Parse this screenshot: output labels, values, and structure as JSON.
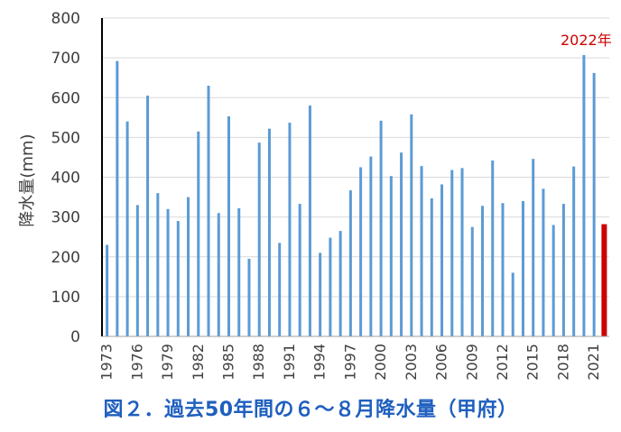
{
  "caption": "図２．過去50年間の６～８月降水量（甲府）",
  "chart_data": {
    "type": "bar",
    "ylabel": "降水量(mm)",
    "ylim": [
      0,
      800
    ],
    "yticks": [
      "0",
      "100",
      "200",
      "300",
      "400",
      "500",
      "600",
      "700",
      "800"
    ],
    "xtick_labels": [
      "1973",
      "1976",
      "1979",
      "1982",
      "1985",
      "1988",
      "1991",
      "1994",
      "1997",
      "2000",
      "2003",
      "2006",
      "2009",
      "2012",
      "2015",
      "2018",
      "2021"
    ],
    "bar_color": "#5b9bd5",
    "highlight_color": "#cc0000",
    "highlight_label": "2022年",
    "highlight_category": "2022",
    "categories": [
      "1973",
      "1974",
      "1975",
      "1976",
      "1977",
      "1978",
      "1979",
      "1980",
      "1981",
      "1982",
      "1983",
      "1984",
      "1985",
      "1986",
      "1987",
      "1988",
      "1989",
      "1990",
      "1991",
      "1992",
      "1993",
      "1994",
      "1995",
      "1996",
      "1997",
      "1998",
      "1999",
      "2000",
      "2001",
      "2002",
      "2003",
      "2004",
      "2005",
      "2006",
      "2007",
      "2008",
      "2009",
      "2010",
      "2011",
      "2012",
      "2013",
      "2014",
      "2015",
      "2016",
      "2017",
      "2018",
      "2019",
      "2020",
      "2021",
      "2022"
    ],
    "values": [
      230,
      692,
      540,
      330,
      605,
      360,
      320,
      290,
      350,
      515,
      630,
      310,
      553,
      322,
      195,
      487,
      522,
      235,
      537,
      333,
      580,
      210,
      248,
      265,
      367,
      425,
      452,
      542,
      403,
      462,
      558,
      428,
      347,
      382,
      418,
      423,
      275,
      328,
      442,
      335,
      160,
      340,
      446,
      371,
      280,
      333,
      427,
      707,
      662,
      282
    ]
  }
}
